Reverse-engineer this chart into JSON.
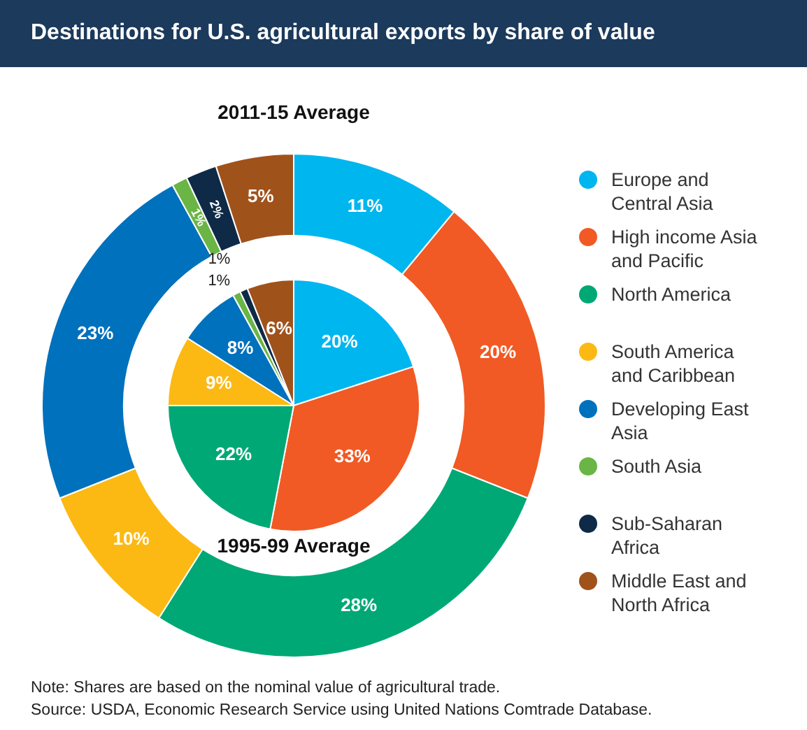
{
  "chart_data": {
    "type": "donut",
    "title": "Destinations for U.S. agricultural exports by share of value",
    "categories": [
      "Europe and Central Asia",
      "High income Asia and Pacific",
      "North America",
      "South America and Caribbean",
      "Developing East Asia",
      "South Asia",
      "Sub-Saharan Africa",
      "Middle East and North Africa"
    ],
    "colors": [
      "#00b6ef",
      "#f15a24",
      "#00a875",
      "#fcb913",
      "#0071bc",
      "#6ab545",
      "#0e2a47",
      "#a0521b"
    ],
    "series": [
      {
        "values": [
          11,
          20,
          28,
          10,
          23,
          1,
          2,
          5
        ],
        "value_labels": [
          "11%",
          "20%",
          "28%",
          "10%",
          "23%",
          "1%",
          "2%",
          "5%"
        ]
      },
      {
        "type": "pie",
        "values": [
          20,
          33,
          22,
          9,
          8,
          1,
          1,
          6
        ],
        "value_labels": [
          "20%",
          "33%",
          "22%",
          "9%",
          "8%",
          "1%",
          "1%",
          "6%"
        ]
      }
    ],
    "legend": "right",
    "annotations": [
      "2011-15 Average",
      "1995-99 Average",
      "Note: Shares are based on the nominal value of agricultural trade.",
      "Source: USDA, Economic Research Service using United Nations Comtrade Database."
    ]
  }
}
